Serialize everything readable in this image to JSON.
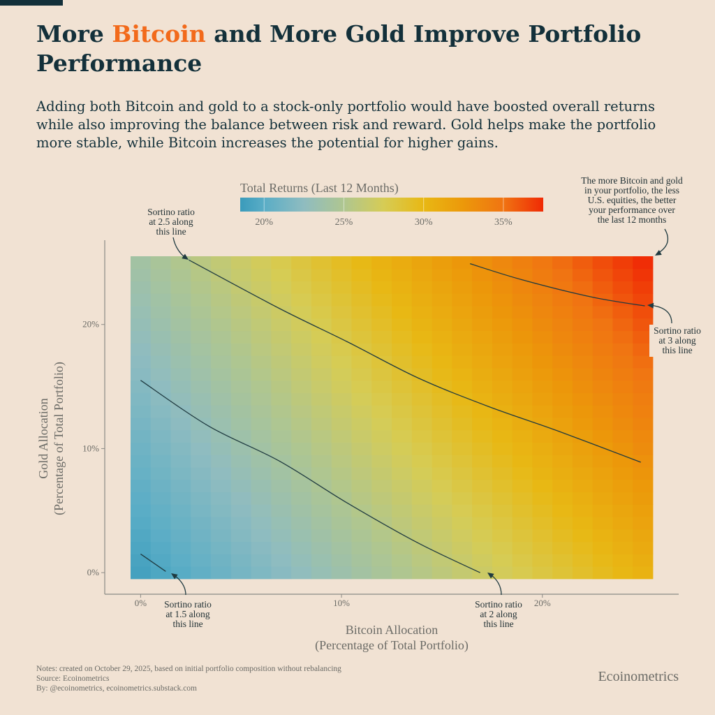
{
  "header": {
    "title_pre": "More ",
    "title_highlight": "Bitcoin",
    "title_post": " and More Gold Improve Portfolio Performance",
    "subtitle": "Adding both Bitcoin and gold to a stock-only portfolio would have boosted overall returns while also improving the balance between risk and reward. Gold helps make the portfolio more stable, while Bitcoin increases the potential for higher gains."
  },
  "colors": {
    "background": "#f1e2d3",
    "title": "#13303a",
    "highlight": "#f26a1b",
    "muted_text": "#6b6b66",
    "line": "#1f3a40",
    "scale": [
      [
        18.5,
        "#3a9bbb"
      ],
      [
        20,
        "#5aadc6"
      ],
      [
        22.5,
        "#8fbcc0"
      ],
      [
        25,
        "#afc690"
      ],
      [
        27.5,
        "#d6cc55"
      ],
      [
        30,
        "#e8b814"
      ],
      [
        32.5,
        "#ec980a"
      ],
      [
        35,
        "#f07412"
      ],
      [
        37.5,
        "#f02a05"
      ]
    ]
  },
  "chart_data": {
    "type": "heatmap",
    "title": "Total Returns (Last 12 Months)",
    "xlabel": "Bitcoin Allocation\n(Percentage of Total Portfolio)",
    "ylabel": "Gold Allocation\n(Percentage of Total Portfolio)",
    "xlabel_lines": [
      "Bitcoin Allocation",
      "(Percentage of Total Portfolio)"
    ],
    "ylabel_lines": [
      "Gold Allocation",
      "(Percentage of Total Portfolio)"
    ],
    "xlim": [
      -0.5,
      25.5
    ],
    "ylim": [
      -0.5,
      25.5
    ],
    "cell_step": 1,
    "x_ticks": [
      {
        "value": 0,
        "label": "0%"
      },
      {
        "value": 10,
        "label": "10%"
      },
      {
        "value": 20,
        "label": "20%"
      }
    ],
    "y_ticks": [
      {
        "value": 0,
        "label": "0%"
      },
      {
        "value": 10,
        "label": "10%"
      },
      {
        "value": 20,
        "label": "20%"
      }
    ],
    "colorbar": {
      "range": [
        18.5,
        37.5
      ],
      "ticks": [
        {
          "value": 20,
          "label": "20%"
        },
        {
          "value": 25,
          "label": "25%"
        },
        {
          "value": 30,
          "label": "30%"
        },
        {
          "value": 35,
          "label": "35%"
        }
      ],
      "placement": "top"
    },
    "z_grid_x": [
      0,
      5,
      10,
      15,
      20,
      25
    ],
    "z_grid_y": [
      0,
      5,
      10,
      15,
      20,
      25
    ],
    "z_grid_note_unit": "%",
    "z": [
      [
        19.0,
        21.3,
        23.6,
        25.9,
        28.2,
        30.5
      ],
      [
        20.0,
        22.4,
        24.8,
        27.1,
        29.5,
        31.9
      ],
      [
        21.0,
        23.5,
        25.9,
        28.4,
        30.8,
        33.3
      ],
      [
        22.0,
        24.5,
        27.1,
        29.6,
        32.1,
        34.6
      ],
      [
        23.0,
        25.6,
        28.2,
        30.8,
        33.4,
        36.0
      ],
      [
        24.0,
        26.7,
        29.4,
        32.0,
        34.7,
        37.4
      ]
    ],
    "contours": [
      {
        "level": 1.5,
        "points": [
          [
            0,
            1.5
          ],
          [
            1.25,
            0.1
          ]
        ]
      },
      {
        "level": 2,
        "points": [
          [
            0,
            15.5
          ],
          [
            3.4,
            11.8
          ],
          [
            6.9,
            9.0
          ],
          [
            10.3,
            5.6
          ],
          [
            13.8,
            2.4
          ],
          [
            16.9,
            0.0
          ]
        ]
      },
      {
        "level": 2.5,
        "points": [
          [
            2.4,
            25.2
          ],
          [
            6.9,
            21.3
          ],
          [
            10.3,
            18.6
          ],
          [
            13.8,
            15.7
          ],
          [
            17.3,
            13.4
          ],
          [
            20.8,
            11.4
          ],
          [
            24.9,
            8.9
          ]
        ]
      },
      {
        "level": 3,
        "points": [
          [
            16.4,
            24.9
          ],
          [
            19.0,
            23.6
          ],
          [
            22.5,
            22.2
          ],
          [
            25.1,
            21.5
          ]
        ]
      }
    ],
    "annotations": {
      "sortino_2_5": [
        "Sortino ratio",
        "at 2.5 along",
        "this line"
      ],
      "sortino_1_5": [
        "Sortino ratio",
        "at 1.5 along",
        "this line"
      ],
      "sortino_2": [
        "Sortino ratio",
        "at 2 along",
        "this line"
      ],
      "sortino_3": [
        "Sortino ratio",
        "at 3 along",
        "this line"
      ],
      "more_better": [
        "The more Bitcoin and gold",
        "in your portfolio, the less",
        "U.S. equities, the better",
        "your performance over",
        "the last 12 months"
      ]
    }
  },
  "footer": {
    "notes": "Notes: created on October 29, 2025, based on initial portfolio composition without rebalancing",
    "source": "Source: Ecoinometrics",
    "by": "By: @ecoinometrics, ecoinometrics.substack.com",
    "brand": "Ecoinometrics"
  }
}
